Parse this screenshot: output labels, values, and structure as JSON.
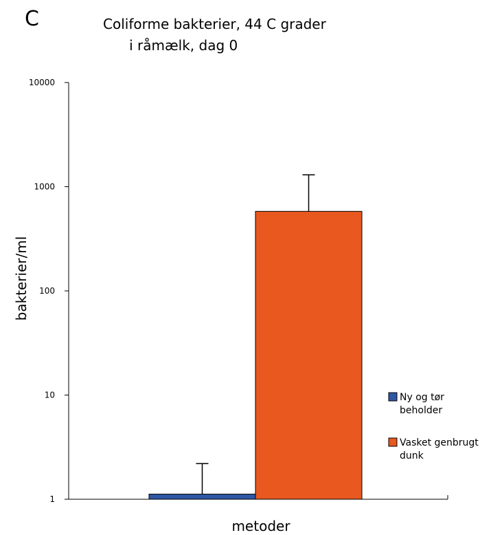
{
  "panel_letter": "C",
  "chart_data": {
    "type": "bar",
    "title": "Coliforme bakterier, 44 C grader\n      i råmælk, dag 0",
    "xlabel": "metoder",
    "ylabel": "bakterier/ml",
    "yscale": "log",
    "ylim": [
      1,
      10000
    ],
    "y_ticks": [
      1,
      10,
      100,
      1000,
      10000
    ],
    "y_tick_labels": [
      "1",
      "10",
      "100",
      "1000",
      "10000"
    ],
    "legend_position": "right",
    "grid": false,
    "series": [
      {
        "name": "Ny og tør beholder",
        "legend_lines": [
          "Ny og tør",
          "beholder"
        ],
        "value": 1.12,
        "error_upper": 2.2,
        "color": "#2f57a4"
      },
      {
        "name": "Vasket genbrugt dunk",
        "legend_lines": [
          "Vasket genbrugt",
          "dunk"
        ],
        "value": 580,
        "error_upper": 1300,
        "color": "#e8581f"
      }
    ]
  }
}
